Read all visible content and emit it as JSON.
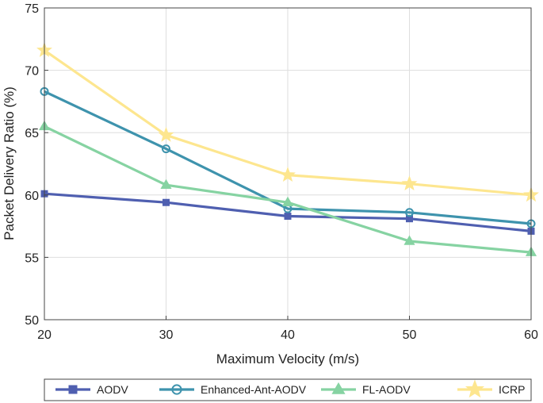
{
  "chart_data": {
    "type": "line",
    "title": "",
    "xlabel": "Maximum Velocity (m/s)",
    "ylabel": "Packet Delivery Ratio (%)",
    "x": [
      20,
      30,
      40,
      50,
      60
    ],
    "xlim": [
      20,
      60
    ],
    "ylim": [
      50,
      75
    ],
    "xticks": [
      "20",
      "30",
      "40",
      "50",
      "60"
    ],
    "yticks": [
      "50",
      "55",
      "60",
      "65",
      "70",
      "75"
    ],
    "grid": true,
    "legend_position": "bottom",
    "series": [
      {
        "name": "AODV",
        "values": [
          60.1,
          59.4,
          58.3,
          58.1,
          57.1
        ],
        "color": "#4f5fb0",
        "marker": "square"
      },
      {
        "name": "Enhanced-Ant-AODV",
        "values": [
          68.3,
          63.7,
          58.9,
          58.6,
          57.7
        ],
        "color": "#3e93ad",
        "marker": "circle"
      },
      {
        "name": "FL-AODV",
        "values": [
          65.5,
          60.8,
          59.4,
          56.3,
          55.4
        ],
        "color": "#86d3a2",
        "marker": "triangle"
      },
      {
        "name": "ICRP",
        "values": [
          71.6,
          64.8,
          61.6,
          60.9,
          60.0
        ],
        "color": "#fde68f",
        "marker": "star"
      }
    ]
  }
}
